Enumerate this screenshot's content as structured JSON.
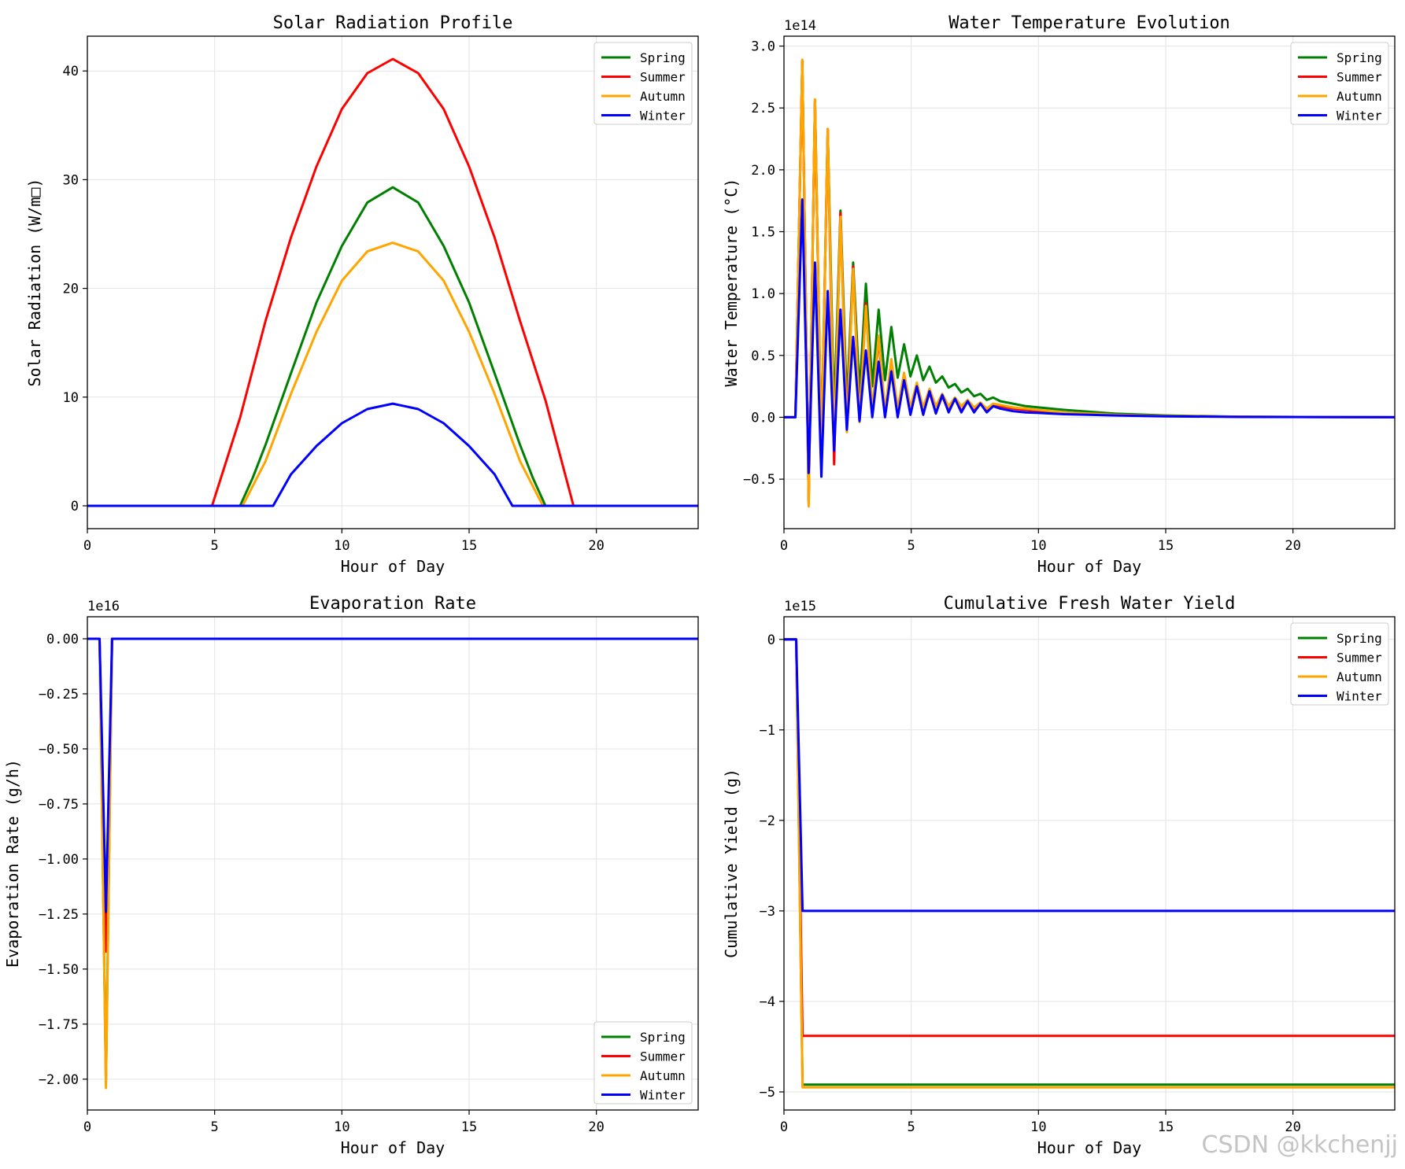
{
  "figure": {
    "watermark": "CSDN @kkchenjj",
    "colors": {
      "Spring": "#008000",
      "Summer": "#ff0000",
      "Autumn": "#ffa500",
      "Winter": "#0000ff"
    }
  },
  "chart_data": [
    {
      "id": "solar",
      "type": "line",
      "title": "Solar Radiation Profile",
      "xlabel": "Hour of Day",
      "ylabel": "Solar Radiation (W/m□)",
      "xlim": [
        0,
        24
      ],
      "ylim": [
        -2.1,
        43.2
      ],
      "xticks": [
        0,
        5,
        10,
        15,
        20
      ],
      "yticks": [
        0,
        10,
        20,
        30,
        40
      ],
      "ytick_labels": [
        "0",
        "10",
        "20",
        "30",
        "40"
      ],
      "offset_text": "",
      "grid": true,
      "legend": "upper right",
      "series": [
        {
          "name": "Spring",
          "x": [
            0,
            5.4,
            6,
            6.5,
            7,
            8,
            9,
            10,
            11,
            12,
            13,
            14,
            15,
            16,
            17,
            17.5,
            18,
            18.6,
            24
          ],
          "y": [
            0,
            0,
            0,
            2.6,
            5.6,
            12.2,
            18.7,
            23.9,
            27.9,
            29.3,
            27.9,
            23.9,
            18.7,
            12.2,
            5.6,
            2.6,
            0,
            0,
            0
          ]
        },
        {
          "name": "Summer",
          "x": [
            0,
            4.5,
            4.9,
            6,
            7,
            8,
            9,
            10,
            11,
            12,
            13,
            14,
            15,
            16,
            17,
            18,
            19.1,
            19.5,
            24
          ],
          "y": [
            0,
            0,
            0,
            8.1,
            17.0,
            24.7,
            31.2,
            36.5,
            39.8,
            41.1,
            39.8,
            36.5,
            31.2,
            24.7,
            17.0,
            9.7,
            0,
            0,
            0
          ]
        },
        {
          "name": "Autumn",
          "x": [
            0,
            5.6,
            6.1,
            7,
            8,
            9,
            10,
            11,
            12,
            13,
            14,
            15,
            16,
            17,
            17.9,
            18.5,
            24
          ],
          "y": [
            0,
            0,
            0,
            4.1,
            10.3,
            16.0,
            20.7,
            23.4,
            24.2,
            23.4,
            20.7,
            16.0,
            10.3,
            4.1,
            0,
            0,
            0
          ]
        },
        {
          "name": "Winter",
          "x": [
            0,
            7.0,
            7.3,
            8,
            9,
            10,
            11,
            12,
            13,
            14,
            15,
            16,
            16.7,
            17,
            24
          ],
          "y": [
            0,
            0,
            0,
            2.9,
            5.5,
            7.6,
            8.9,
            9.4,
            8.9,
            7.6,
            5.5,
            2.9,
            0,
            0,
            0
          ]
        }
      ]
    },
    {
      "id": "watertemp",
      "type": "line",
      "title": "Water Temperature Evolution",
      "xlabel": "Hour of Day",
      "ylabel": "Water Temperature (°C)",
      "xlim": [
        0,
        24
      ],
      "ylim": [
        -0.9,
        3.08
      ],
      "xticks": [
        0,
        5,
        10,
        15,
        20
      ],
      "yticks": [
        -0.5,
        0.0,
        0.5,
        1.0,
        1.5,
        2.0,
        2.5,
        3.0
      ],
      "ytick_labels": [
        "−0.5",
        "0.0",
        "0.5",
        "1.0",
        "1.5",
        "2.0",
        "2.5",
        "3.0"
      ],
      "offset_text": "1e14",
      "grid": true,
      "legend": "upper right",
      "series": [
        {
          "name": "Spring",
          "x": [
            0,
            0.45,
            0.72,
            0.97,
            1.22,
            1.47,
            1.72,
            1.97,
            2.22,
            2.47,
            2.72,
            2.97,
            3.22,
            3.47,
            3.72,
            3.97,
            4.22,
            4.47,
            4.72,
            4.97,
            5.22,
            5.47,
            5.72,
            5.97,
            6.22,
            6.47,
            6.72,
            6.97,
            7.22,
            7.47,
            7.72,
            7.97,
            8.22,
            8.5,
            9,
            9.5,
            10,
            11,
            12,
            13,
            15,
            18,
            24
          ],
          "y": [
            0,
            0,
            2.88,
            -0.68,
            2.56,
            -0.25,
            2.33,
            0.0,
            1.67,
            0.1,
            1.25,
            0.2,
            1.08,
            0.25,
            0.87,
            0.3,
            0.73,
            0.32,
            0.59,
            0.33,
            0.5,
            0.3,
            0.41,
            0.28,
            0.33,
            0.24,
            0.27,
            0.2,
            0.23,
            0.17,
            0.19,
            0.14,
            0.16,
            0.13,
            0.11,
            0.09,
            0.08,
            0.06,
            0.045,
            0.03,
            0.015,
            0.005,
            0
          ]
        },
        {
          "name": "Summer",
          "x": [
            0,
            0.45,
            0.72,
            0.97,
            1.22,
            1.47,
            1.72,
            1.97,
            2.22,
            2.47,
            2.72,
            2.97,
            3.22,
            3.47,
            3.72,
            3.97,
            4.22,
            4.47,
            4.72,
            4.97,
            5.22,
            5.47,
            5.72,
            5.97,
            6.22,
            6.47,
            6.72,
            6.97,
            7.22,
            7.47,
            7.72,
            7.97,
            8.22,
            8.5,
            9,
            9.5,
            10,
            11,
            12,
            13,
            15,
            18,
            24
          ],
          "y": [
            0,
            0,
            2.88,
            -0.7,
            2.56,
            -0.35,
            2.33,
            -0.38,
            1.65,
            -0.08,
            1.22,
            -0.02,
            0.92,
            0.02,
            0.64,
            0.02,
            0.44,
            0.02,
            0.33,
            0.03,
            0.25,
            0.03,
            0.2,
            0.04,
            0.17,
            0.05,
            0.15,
            0.05,
            0.13,
            0.05,
            0.11,
            0.05,
            0.1,
            0.09,
            0.07,
            0.06,
            0.05,
            0.035,
            0.025,
            0.02,
            0.01,
            0.004,
            0
          ]
        },
        {
          "name": "Autumn",
          "x": [
            0,
            0.45,
            0.72,
            0.97,
            1.22,
            1.47,
            1.72,
            1.97,
            2.22,
            2.47,
            2.72,
            2.97,
            3.22,
            3.47,
            3.72,
            3.97,
            4.22,
            4.47,
            4.72,
            4.97,
            5.22,
            5.47,
            5.72,
            5.97,
            6.22,
            6.47,
            6.72,
            6.97,
            7.22,
            7.47,
            7.72,
            7.97,
            8.22,
            8.5,
            9,
            9.5,
            10,
            11,
            12,
            13,
            15,
            18,
            24
          ],
          "y": [
            0,
            0,
            2.89,
            -0.72,
            2.57,
            -0.3,
            2.33,
            -0.25,
            1.62,
            -0.12,
            1.2,
            -0.04,
            0.9,
            0.04,
            0.66,
            0.05,
            0.47,
            0.07,
            0.36,
            0.08,
            0.28,
            0.08,
            0.23,
            0.09,
            0.19,
            0.09,
            0.16,
            0.09,
            0.14,
            0.08,
            0.12,
            0.07,
            0.11,
            0.1,
            0.08,
            0.07,
            0.06,
            0.04,
            0.03,
            0.02,
            0.01,
            0.004,
            0
          ]
        },
        {
          "name": "Winter",
          "x": [
            0,
            0.45,
            0.72,
            0.97,
            1.22,
            1.47,
            1.72,
            1.97,
            2.22,
            2.47,
            2.72,
            2.97,
            3.22,
            3.47,
            3.72,
            3.97,
            4.22,
            4.47,
            4.72,
            4.97,
            5.22,
            5.47,
            5.72,
            5.97,
            6.22,
            6.47,
            6.72,
            6.97,
            7.22,
            7.47,
            7.72,
            7.97,
            8.22,
            8.5,
            9,
            9.5,
            10,
            11,
            12,
            13,
            15,
            18,
            24
          ],
          "y": [
            0,
            0,
            1.76,
            -0.45,
            1.25,
            -0.48,
            1.02,
            -0.27,
            0.87,
            -0.1,
            0.65,
            -0.03,
            0.54,
            0.0,
            0.45,
            0.0,
            0.37,
            0.0,
            0.3,
            0.02,
            0.25,
            0.02,
            0.21,
            0.03,
            0.18,
            0.04,
            0.15,
            0.04,
            0.13,
            0.04,
            0.11,
            0.04,
            0.09,
            0.07,
            0.05,
            0.04,
            0.035,
            0.025,
            0.02,
            0.015,
            0.008,
            0.003,
            0
          ]
        }
      ]
    },
    {
      "id": "evap",
      "type": "line",
      "title": "Evaporation Rate",
      "xlabel": "Hour of Day",
      "ylabel": "Evaporation Rate (g/h)",
      "xlim": [
        0,
        24
      ],
      "ylim": [
        -2.14,
        0.1
      ],
      "xticks": [
        0,
        5,
        10,
        15,
        20
      ],
      "yticks": [
        -2.0,
        -1.75,
        -1.5,
        -1.25,
        -1.0,
        -0.75,
        -0.5,
        -0.25,
        0.0
      ],
      "ytick_labels": [
        "−2.00",
        "−1.75",
        "−1.50",
        "−1.25",
        "−1.00",
        "−0.75",
        "−0.50",
        "−0.25",
        "0.00"
      ],
      "offset_text": "1e16",
      "grid": true,
      "legend": "lower right",
      "series": [
        {
          "name": "Spring",
          "x": [
            0,
            0.48,
            0.73,
            0.97,
            24
          ],
          "y": [
            0,
            0,
            -2.02,
            0,
            0
          ]
        },
        {
          "name": "Summer",
          "x": [
            0,
            0.48,
            0.73,
            0.97,
            24
          ],
          "y": [
            0,
            0,
            -1.42,
            0,
            0
          ]
        },
        {
          "name": "Autumn",
          "x": [
            0,
            0.48,
            0.73,
            0.97,
            24
          ],
          "y": [
            0,
            0,
            -2.04,
            0,
            0
          ]
        },
        {
          "name": "Winter",
          "x": [
            0,
            0.48,
            0.73,
            0.97,
            24
          ],
          "y": [
            0,
            0,
            -1.24,
            0,
            0
          ]
        }
      ]
    },
    {
      "id": "yield",
      "type": "line",
      "title": "Cumulative Fresh Water Yield",
      "xlabel": "Hour of Day",
      "ylabel": "Cumulative Yield (g)",
      "xlim": [
        0,
        24
      ],
      "ylim": [
        -5.2,
        0.25
      ],
      "xticks": [
        0,
        5,
        10,
        15,
        20
      ],
      "yticks": [
        -5,
        -4,
        -3,
        -2,
        -1,
        0
      ],
      "ytick_labels": [
        "−5",
        "−4",
        "−3",
        "−2",
        "−1",
        "0"
      ],
      "offset_text": "1e15",
      "grid": true,
      "legend": "upper right",
      "series": [
        {
          "name": "Spring",
          "x": [
            0,
            0.48,
            0.73,
            24
          ],
          "y": [
            0,
            0,
            -4.92,
            -4.92
          ]
        },
        {
          "name": "Summer",
          "x": [
            0,
            0.48,
            0.73,
            24
          ],
          "y": [
            0,
            0,
            -4.38,
            -4.38
          ]
        },
        {
          "name": "Autumn",
          "x": [
            0,
            0.48,
            0.73,
            24
          ],
          "y": [
            0,
            0,
            -4.95,
            -4.95
          ]
        },
        {
          "name": "Winter",
          "x": [
            0,
            0.48,
            0.73,
            24
          ],
          "y": [
            0,
            0,
            -3.0,
            -3.0
          ]
        }
      ]
    }
  ]
}
